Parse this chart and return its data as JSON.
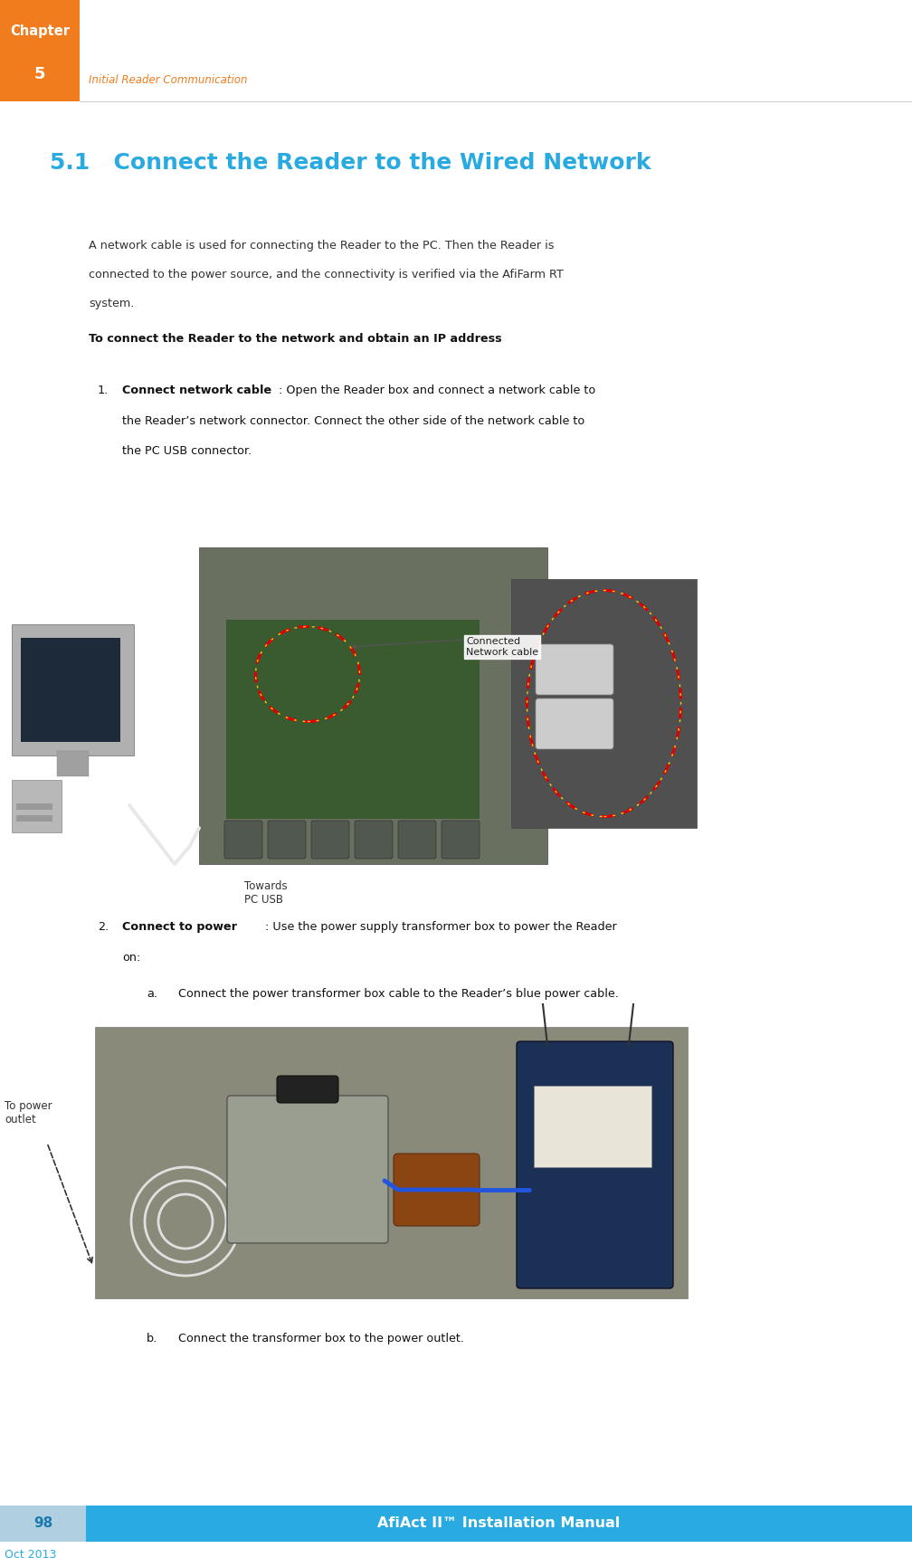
{
  "page_width": 10.08,
  "page_height": 17.22,
  "dpi": 100,
  "bg_color": "#ffffff",
  "header_box_color": "#F07C1E",
  "header_chapter_text": "Chapter",
  "header_number_text": "5",
  "header_subtitle_text": "Initial Reader Communication",
  "header_subtitle_color": "#F07C1E",
  "footer_bar_color": "#29ABE2",
  "footer_page_box_color": "#B0CFE0",
  "footer_page_num": "98",
  "footer_text": "AfiAct II™ Installation Manual",
  "footer_date": "Oct 2013",
  "section_title": "5.1   Connect the Reader to the Wired Network",
  "section_title_color": "#29ABE2",
  "body_color": "#333333",
  "bold_heading": "To connect the Reader to the network and obtain an IP address",
  "step1_bold": "Connect network cable",
  "step1_rest": ": Open the Reader box and connect a network cable to",
  "step1_line2": "the Reader’s network connector. Connect the other side of the network cable to",
  "step1_line3": "the PC USB connector.",
  "step2_bold": "Connect to power",
  "step2_rest": ": Use the power supply transformer box to power the Reader",
  "step2_line2": "on:",
  "step2a_text": "Connect the power transformer box cable to the Reader’s blue power cable.",
  "step2b_text": "Connect the transformer box to the power outlet.",
  "ann_network": "Connected\nNetwork cable",
  "ann_towards": "Towards\nPC USB",
  "ann_power": "To power\noutlet",
  "ann_blue": "blue\npower\ncable.",
  "img1_color": "#6a7060",
  "img2_color": "#505050",
  "img3_color": "#8a8a7a",
  "pc_color": "#c8c8c8",
  "line_color": "#e8e8e8",
  "red_dash": "#dd0000",
  "yellow_dash": "#ffcc00"
}
